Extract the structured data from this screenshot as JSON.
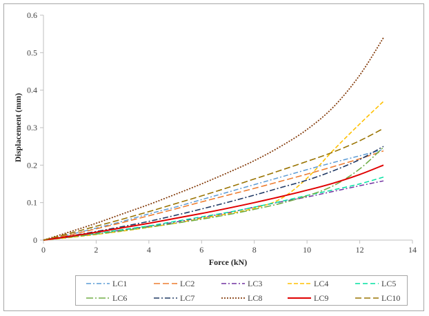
{
  "chart_data": {
    "type": "line",
    "xlabel": "Force (kN)",
    "ylabel": "Displacement (mm)",
    "xlim": [
      0,
      14
    ],
    "ylim": [
      0,
      0.6
    ],
    "xticks": [
      "0",
      "2",
      "4",
      "6",
      "8",
      "10",
      "12",
      "14"
    ],
    "yticks": [
      "0",
      "0.1",
      "0.2",
      "0.3",
      "0.4",
      "0.5",
      "0.6"
    ],
    "grid": false,
    "legend_position": "bottom",
    "series": [
      {
        "name": "LC1",
        "color": "#5b9bd5",
        "dash": "7 3 2 3",
        "width": 1.5,
        "points": [
          [
            0,
            0
          ],
          [
            1,
            0.015
          ],
          [
            2,
            0.032
          ],
          [
            3,
            0.05
          ],
          [
            4,
            0.07
          ],
          [
            5,
            0.088
          ],
          [
            6,
            0.108
          ],
          [
            7,
            0.128
          ],
          [
            8,
            0.148
          ],
          [
            9,
            0.168
          ],
          [
            10,
            0.188
          ],
          [
            11,
            0.207
          ],
          [
            12,
            0.225
          ],
          [
            12.9,
            0.242
          ]
        ]
      },
      {
        "name": "LC2",
        "color": "#ed7d31",
        "dash": "9 4",
        "width": 1.6,
        "points": [
          [
            0,
            0
          ],
          [
            1,
            0.014
          ],
          [
            2,
            0.03
          ],
          [
            3,
            0.047
          ],
          [
            4,
            0.065
          ],
          [
            5,
            0.083
          ],
          [
            6,
            0.102
          ],
          [
            7,
            0.12
          ],
          [
            8,
            0.138
          ],
          [
            9,
            0.157
          ],
          [
            10,
            0.176
          ],
          [
            11,
            0.196
          ],
          [
            12,
            0.217
          ],
          [
            12.9,
            0.238
          ]
        ]
      },
      {
        "name": "LC3",
        "color": "#7030a0",
        "dash": "7 3 2 3",
        "width": 1.5,
        "points": [
          [
            0,
            0
          ],
          [
            1,
            0.008
          ],
          [
            2,
            0.017
          ],
          [
            3,
            0.027
          ],
          [
            4,
            0.037
          ],
          [
            5,
            0.048
          ],
          [
            6,
            0.06
          ],
          [
            7,
            0.073
          ],
          [
            8,
            0.088
          ],
          [
            9,
            0.102
          ],
          [
            10,
            0.115
          ],
          [
            11,
            0.13
          ],
          [
            12,
            0.145
          ],
          [
            12.9,
            0.158
          ]
        ]
      },
      {
        "name": "LC4",
        "color": "#ffc000",
        "dash": "6 3",
        "width": 1.6,
        "points": [
          [
            0,
            0
          ],
          [
            1,
            0.007
          ],
          [
            2,
            0.015
          ],
          [
            3,
            0.024
          ],
          [
            4,
            0.034
          ],
          [
            5,
            0.045
          ],
          [
            6,
            0.058
          ],
          [
            7,
            0.07
          ],
          [
            8,
            0.085
          ],
          [
            9,
            0.11
          ],
          [
            10,
            0.165
          ],
          [
            11,
            0.24
          ],
          [
            12,
            0.31
          ],
          [
            12.9,
            0.37
          ]
        ]
      },
      {
        "name": "LC5",
        "color": "#00e0a0",
        "dash": "7 4",
        "width": 1.5,
        "points": [
          [
            0,
            0
          ],
          [
            1,
            0.009
          ],
          [
            2,
            0.018
          ],
          [
            3,
            0.028
          ],
          [
            4,
            0.038
          ],
          [
            5,
            0.05
          ],
          [
            6,
            0.062
          ],
          [
            7,
            0.074
          ],
          [
            8,
            0.088
          ],
          [
            9,
            0.103
          ],
          [
            10,
            0.119
          ],
          [
            11,
            0.134
          ],
          [
            12,
            0.15
          ],
          [
            12.9,
            0.168
          ]
        ]
      },
      {
        "name": "LC6",
        "color": "#70ad47",
        "dash": "10 3 2 3",
        "width": 1.6,
        "points": [
          [
            0,
            0
          ],
          [
            1,
            0.008
          ],
          [
            2,
            0.016
          ],
          [
            3,
            0.025
          ],
          [
            4,
            0.035
          ],
          [
            5,
            0.045
          ],
          [
            6,
            0.056
          ],
          [
            7,
            0.068
          ],
          [
            8,
            0.082
          ],
          [
            9,
            0.098
          ],
          [
            10,
            0.118
          ],
          [
            11,
            0.145
          ],
          [
            12,
            0.19
          ],
          [
            12.9,
            0.248
          ]
        ]
      },
      {
        "name": "LC7",
        "color": "#1f3864",
        "dash": "8 3 2 3",
        "width": 1.6,
        "points": [
          [
            0,
            0
          ],
          [
            1,
            0.011
          ],
          [
            2,
            0.023
          ],
          [
            3,
            0.036
          ],
          [
            4,
            0.05
          ],
          [
            5,
            0.066
          ],
          [
            6,
            0.083
          ],
          [
            7,
            0.101
          ],
          [
            8,
            0.12
          ],
          [
            9,
            0.14
          ],
          [
            10,
            0.16
          ],
          [
            11,
            0.185
          ],
          [
            12,
            0.215
          ],
          [
            12.9,
            0.25
          ]
        ]
      },
      {
        "name": "LC8",
        "color": "#843c0c",
        "dash": "2 2",
        "width": 1.8,
        "points": [
          [
            0,
            0
          ],
          [
            1,
            0.022
          ],
          [
            2,
            0.045
          ],
          [
            3,
            0.07
          ],
          [
            4,
            0.095
          ],
          [
            5,
            0.122
          ],
          [
            6,
            0.15
          ],
          [
            7,
            0.18
          ],
          [
            8,
            0.212
          ],
          [
            9,
            0.25
          ],
          [
            10,
            0.295
          ],
          [
            11,
            0.355
          ],
          [
            12,
            0.44
          ],
          [
            12.9,
            0.54
          ]
        ]
      },
      {
        "name": "LC9",
        "color": "#e00000",
        "dash": "",
        "width": 2,
        "points": [
          [
            0,
            0
          ],
          [
            1,
            0.01
          ],
          [
            2,
            0.021
          ],
          [
            3,
            0.033
          ],
          [
            4,
            0.045
          ],
          [
            5,
            0.058
          ],
          [
            6,
            0.071
          ],
          [
            7,
            0.085
          ],
          [
            8,
            0.1
          ],
          [
            9,
            0.116
          ],
          [
            10,
            0.133
          ],
          [
            11,
            0.152
          ],
          [
            12,
            0.175
          ],
          [
            12.9,
            0.2
          ]
        ]
      },
      {
        "name": "LC10",
        "color": "#997300",
        "dash": "9 4",
        "width": 1.6,
        "points": [
          [
            0,
            0
          ],
          [
            1,
            0.018
          ],
          [
            2,
            0.037
          ],
          [
            3,
            0.056
          ],
          [
            4,
            0.076
          ],
          [
            5,
            0.097
          ],
          [
            6,
            0.118
          ],
          [
            7,
            0.14
          ],
          [
            8,
            0.163
          ],
          [
            9,
            0.186
          ],
          [
            10,
            0.21
          ],
          [
            11,
            0.235
          ],
          [
            12,
            0.265
          ],
          [
            12.9,
            0.298
          ]
        ]
      }
    ]
  }
}
